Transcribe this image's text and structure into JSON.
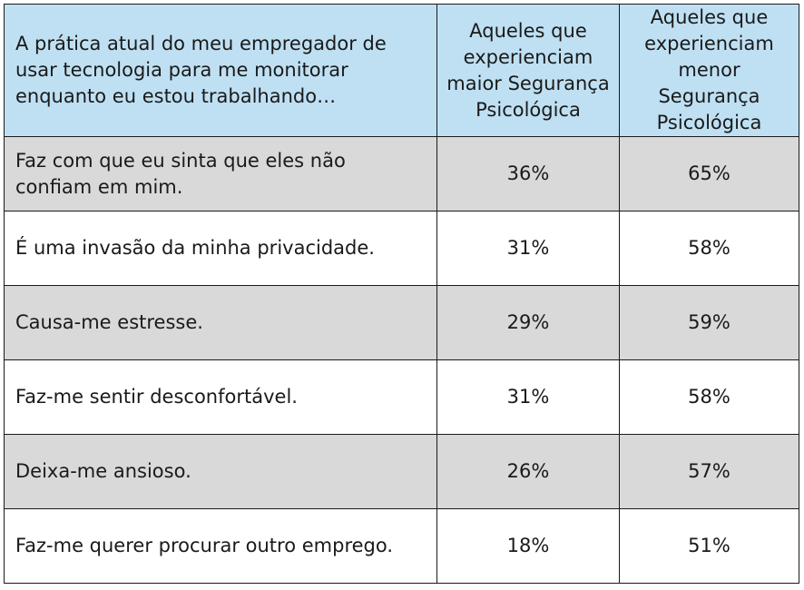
{
  "table": {
    "header": {
      "question": "A prática atual do meu empregador de usar tecnologia para me monitorar enquanto eu estou trabalhando…",
      "group_high": "Aqueles que experienciam maior Segurança Psicológica",
      "group_low": "Aqueles que experienciam menor Segurança Psicológica"
    },
    "colors": {
      "header_bg": "#bfe0f3",
      "shaded_row": "#d9d9d9",
      "plain_row": "#ffffff"
    },
    "rows": [
      {
        "statement": "Faz com que eu sinta que eles não confiam em mim.",
        "high": "36%",
        "low": "65%"
      },
      {
        "statement": "É uma invasão da minha privacidade.",
        "high": "31%",
        "low": "58%"
      },
      {
        "statement": "Causa-me estresse.",
        "high": "29%",
        "low": "59%"
      },
      {
        "statement": "Faz-me sentir desconfortável.",
        "high": "31%",
        "low": "58%"
      },
      {
        "statement": "Deixa-me ansioso.",
        "high": "26%",
        "low": "57%"
      },
      {
        "statement": "Faz-me querer procurar outro emprego.",
        "high": "18%",
        "low": "51%"
      }
    ]
  }
}
